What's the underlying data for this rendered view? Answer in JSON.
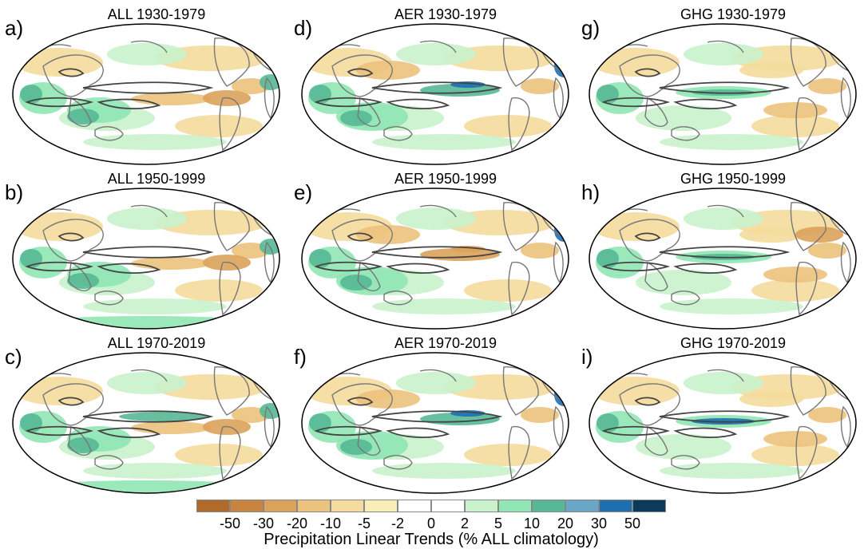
{
  "panels": [
    {
      "label": "a)",
      "title": "ALL 1930-1979",
      "scenario": "ALL"
    },
    {
      "label": "d)",
      "title": "AER 1930-1979",
      "scenario": "AER"
    },
    {
      "label": "g)",
      "title": "GHG 1930-1979",
      "scenario": "GHG"
    },
    {
      "label": "b)",
      "title": "ALL 1950-1999",
      "scenario": "ALL"
    },
    {
      "label": "e)",
      "title": "AER 1950-1999",
      "scenario": "AER"
    },
    {
      "label": "h)",
      "title": "GHG 1950-1999",
      "scenario": "GHG"
    },
    {
      "label": "c)",
      "title": "ALL 1970-2019",
      "scenario": "ALL"
    },
    {
      "label": "f)",
      "title": "AER 1970-2019",
      "scenario": "AER"
    },
    {
      "label": "i)",
      "title": "GHG 1970-2019",
      "scenario": "GHG"
    }
  ],
  "colorbar": {
    "title": "Precipitation Linear Trends (% ALL climatology)",
    "tick_labels": [
      "-50",
      "-30",
      "-20",
      "-10",
      "-5",
      "-2",
      "0",
      "2",
      "5",
      "10",
      "20",
      "30",
      "50"
    ],
    "colors": [
      "#b26a2a",
      "#c9843f",
      "#dca25b",
      "#ecc27c",
      "#f4dc9c",
      "#f8efb8",
      "#ffffff",
      "#ffffff",
      "#c9f2cc",
      "#90e6b4",
      "#56b896",
      "#6aa6c8",
      "#1f6fb0",
      "#0c3a5a"
    ]
  },
  "map_colors": {
    "ocean_base": "#ffffff",
    "dry": "#ecc27c",
    "dry_light": "#f4dc9c",
    "dry_strong": "#dca25b",
    "wet_light": "#c9f2cc",
    "wet": "#90e6b4",
    "wet_strong": "#56b896",
    "blue": "#1f6fb0",
    "coast": "#777777",
    "contour": "#444444",
    "outline": "#000000"
  }
}
